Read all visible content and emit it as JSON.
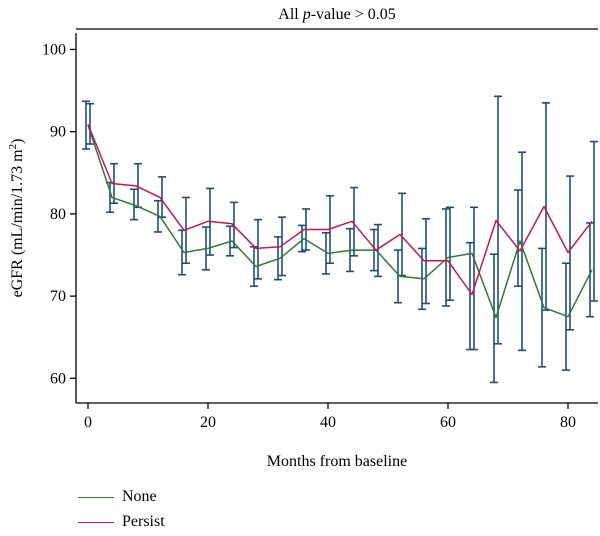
{
  "chart_data": {
    "type": "line",
    "annotation": "All p-value > 0.05",
    "annotation_parts": {
      "pre": "All ",
      "italic": "p",
      "post": "-value > 0.05"
    },
    "xlabel": "Months from baseline",
    "ylabel": "eGFR (mL/min/1.73 m²)",
    "ylabel_parts": {
      "main": "eGFR (mL/min/1.73 m",
      "sup": "2",
      "end": ")"
    },
    "xlim": [
      -2,
      85
    ],
    "ylim": [
      57,
      102
    ],
    "xticks": [
      0,
      20,
      40,
      60,
      80
    ],
    "yticks": [
      60,
      70,
      80,
      90,
      100
    ],
    "grid": false,
    "legend_position": "bottom-left",
    "x": [
      0,
      4,
      8,
      12,
      16,
      20,
      24,
      28,
      32,
      36,
      40,
      44,
      48,
      52,
      56,
      60,
      64,
      68,
      72,
      76,
      80,
      84
    ],
    "series": [
      {
        "name": "None",
        "color": "#2e7d32",
        "values": [
          90.8,
          82.0,
          81.0,
          79.7,
          75.3,
          75.8,
          76.7,
          73.6,
          74.6,
          77.0,
          75.2,
          75.6,
          75.6,
          72.4,
          72.1,
          74.7,
          75.2,
          67.4,
          76.7,
          68.6,
          67.5,
          73.2
        ],
        "ci_low": [
          87.9,
          80.2,
          79.3,
          77.8,
          72.6,
          73.2,
          74.9,
          71.2,
          72.0,
          75.4,
          72.7,
          73.0,
          73.1,
          69.2,
          68.4,
          68.8,
          63.5,
          59.5,
          71.2,
          61.4,
          61.0,
          67.5
        ],
        "ci_high": [
          93.7,
          83.8,
          83.0,
          81.6,
          78.0,
          78.4,
          78.5,
          76.0,
          77.2,
          78.6,
          77.7,
          78.2,
          78.1,
          75.6,
          75.8,
          80.6,
          76.5,
          75.1,
          82.9,
          75.8,
          74.0,
          78.9
        ]
      },
      {
        "name": "Persist",
        "color": "#c2185b",
        "values": [
          90.9,
          83.7,
          83.4,
          82.0,
          78.0,
          79.1,
          78.8,
          75.8,
          76.0,
          78.1,
          78.1,
          79.1,
          75.6,
          77.5,
          74.3,
          74.3,
          70.2,
          79.2,
          75.5,
          80.9,
          75.3,
          79.1
        ],
        "ci_low": [
          88.5,
          81.3,
          80.8,
          79.6,
          74.0,
          75.0,
          75.9,
          72.1,
          72.5,
          75.6,
          74.0,
          74.9,
          72.4,
          72.5,
          69.1,
          69.5,
          63.5,
          64.2,
          63.4,
          68.3,
          65.9,
          69.4
        ],
        "ci_high": [
          93.4,
          86.1,
          86.1,
          84.5,
          82.0,
          83.1,
          81.4,
          79.3,
          79.6,
          80.6,
          82.2,
          83.2,
          78.7,
          82.5,
          79.4,
          80.8,
          80.8,
          94.3,
          87.5,
          93.5,
          84.6,
          88.8
        ]
      }
    ],
    "errorbar_color": "#1f4e79"
  }
}
